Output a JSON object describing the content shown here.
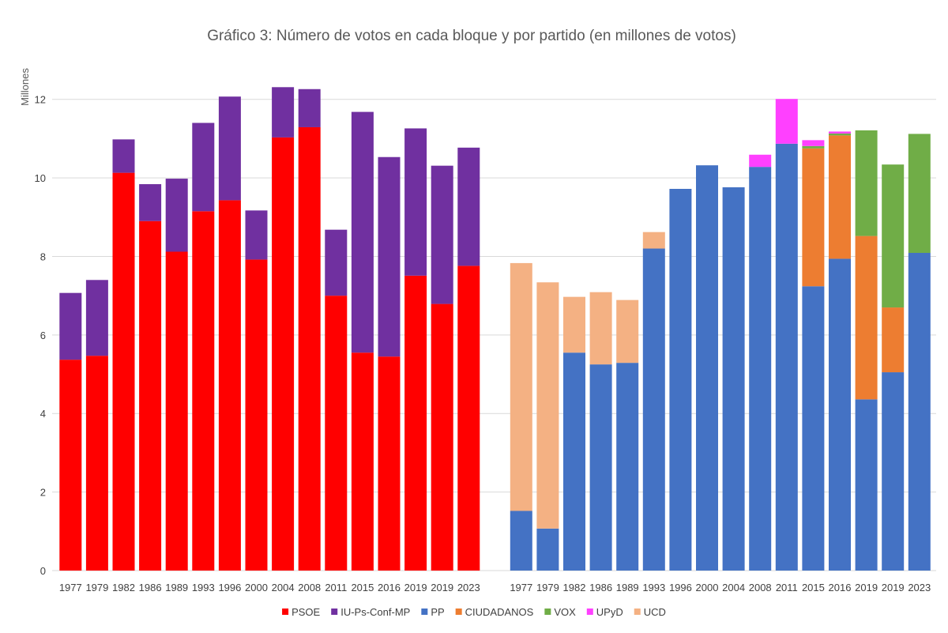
{
  "chart_data": {
    "type": "bar",
    "stacked": true,
    "title": "Gráfico 3: Número de votos en cada bloque y por partido (en millones de votos)",
    "ylabel": "Millones",
    "xlabel": "",
    "ylim": [
      0,
      13
    ],
    "yticks": [
      "0",
      "2",
      "4",
      "6",
      "8",
      "10",
      "12"
    ],
    "grid": true,
    "legend_position": "bottom",
    "categories": [
      "1977",
      "1979",
      "1982",
      "1986",
      "1989",
      "1993",
      "1996",
      "2000",
      "2004",
      "2008",
      "2011",
      "2015",
      "2016",
      "2019",
      "2019",
      "2023",
      "1977",
      "1979",
      "1982",
      "1986",
      "1989",
      "1993",
      "1996",
      "2000",
      "2004",
      "2008",
      "2011",
      "2015",
      "2016",
      "2019",
      "2019",
      "2023"
    ],
    "series": [
      {
        "name": "PSOE",
        "color": "#ff0000",
        "values": [
          5.37,
          5.47,
          10.13,
          8.9,
          8.12,
          9.15,
          9.43,
          7.92,
          11.03,
          11.29,
          7.0,
          5.55,
          5.45,
          7.51,
          6.79,
          7.76,
          null,
          null,
          null,
          null,
          null,
          null,
          null,
          null,
          null,
          null,
          null,
          null,
          null,
          null,
          null,
          null
        ]
      },
      {
        "name": "IU-Ps-Conf-MP",
        "color": "#7030a0",
        "values": [
          1.7,
          1.93,
          0.85,
          0.94,
          1.86,
          2.25,
          2.64,
          1.25,
          1.28,
          0.97,
          1.68,
          6.13,
          5.08,
          3.75,
          3.52,
          3.01,
          null,
          null,
          null,
          null,
          null,
          null,
          null,
          null,
          null,
          null,
          null,
          null,
          null,
          null,
          null,
          null
        ]
      },
      {
        "name": "PP",
        "color": "#4472c4",
        "values": [
          null,
          null,
          null,
          null,
          null,
          null,
          null,
          null,
          null,
          null,
          null,
          null,
          null,
          null,
          null,
          null,
          1.52,
          1.07,
          5.55,
          5.25,
          5.29,
          8.2,
          9.72,
          10.32,
          9.76,
          10.28,
          10.87,
          7.24,
          7.94,
          4.36,
          5.05,
          8.09
        ]
      },
      {
        "name": "CIUDADANOS",
        "color": "#ed7d31",
        "values": [
          null,
          null,
          null,
          null,
          null,
          null,
          null,
          null,
          null,
          null,
          null,
          null,
          null,
          null,
          null,
          null,
          0,
          0,
          0,
          0,
          0,
          0,
          0,
          0,
          0,
          0,
          0,
          3.51,
          3.14,
          4.16,
          1.65,
          0
        ]
      },
      {
        "name": "VOX",
        "color": "#70ad47",
        "values": [
          null,
          null,
          null,
          null,
          null,
          null,
          null,
          null,
          null,
          null,
          null,
          null,
          null,
          null,
          null,
          null,
          0,
          0,
          0,
          0,
          0,
          0,
          0,
          0,
          0,
          0,
          0,
          0.06,
          0.05,
          2.69,
          3.64,
          3.03
        ]
      },
      {
        "name": "UPyD",
        "color": "#ff40ff",
        "values": [
          null,
          null,
          null,
          null,
          null,
          null,
          null,
          null,
          null,
          null,
          null,
          null,
          null,
          null,
          null,
          null,
          0,
          0,
          0,
          0,
          0,
          0,
          0,
          0,
          0,
          0.31,
          1.14,
          0.15,
          0.05,
          0,
          0,
          0
        ]
      },
      {
        "name": "UCD",
        "color": "#f4b183",
        "values": [
          null,
          null,
          null,
          null,
          null,
          null,
          null,
          null,
          null,
          null,
          null,
          null,
          null,
          null,
          null,
          null,
          6.31,
          6.27,
          1.42,
          1.84,
          1.6,
          0.42,
          0,
          0,
          0,
          0,
          0,
          0,
          0,
          0,
          0,
          0
        ]
      }
    ]
  }
}
